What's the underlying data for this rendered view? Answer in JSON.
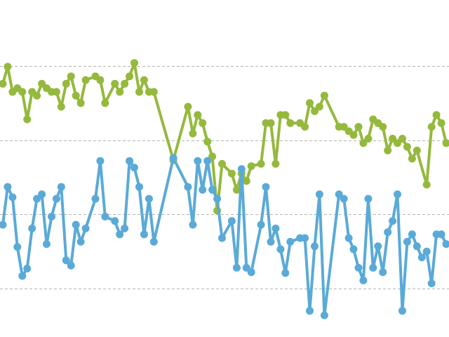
{
  "chart_data": {
    "type": "line",
    "title": "",
    "xlabel": "",
    "ylabel": "",
    "xlim": [
      0,
      91
    ],
    "ylim": [
      0,
      4.5
    ],
    "gridlines_y": [
      1,
      2,
      3,
      4
    ],
    "grid": true,
    "legend": "none",
    "series": [
      {
        "color": "#95b93d",
        "points": [
          [
            0,
            3.76
          ],
          [
            1,
            3.99
          ],
          [
            2,
            3.65
          ],
          [
            3,
            3.7
          ],
          [
            4,
            3.65
          ],
          [
            5,
            3.28
          ],
          [
            6,
            3.65
          ],
          [
            7,
            3.6
          ],
          [
            8,
            3.76
          ],
          [
            9,
            3.7
          ],
          [
            10,
            3.65
          ],
          [
            11,
            3.65
          ],
          [
            12,
            3.45
          ],
          [
            13,
            3.76
          ],
          [
            14,
            3.86
          ],
          [
            15,
            3.6
          ],
          [
            16,
            3.5
          ],
          [
            17,
            3.81
          ],
          [
            19,
            3.86
          ],
          [
            20,
            3.81
          ],
          [
            21,
            3.5
          ],
          [
            23,
            3.76
          ],
          [
            24,
            3.65
          ],
          [
            25,
            3.76
          ],
          [
            26,
            3.86
          ],
          [
            27,
            4.04
          ],
          [
            28,
            3.65
          ],
          [
            29,
            3.81
          ],
          [
            30,
            3.65
          ],
          [
            31,
            3.65
          ],
          [
            35,
            2.73
          ],
          [
            38,
            3.45
          ],
          [
            39,
            3.09
          ],
          [
            40,
            3.34
          ],
          [
            41,
            3.23
          ],
          [
            42,
            2.98
          ],
          [
            43,
            2.78
          ],
          [
            44,
            2.05
          ],
          [
            45,
            2.68
          ],
          [
            47,
            2.55
          ],
          [
            48,
            2.33
          ],
          [
            49,
            2.55
          ],
          [
            50,
            2.45
          ],
          [
            51,
            2.65
          ],
          [
            53,
            2.68
          ],
          [
            54,
            3.23
          ],
          [
            55,
            3.23
          ],
          [
            56,
            2.68
          ],
          [
            57,
            3.34
          ],
          [
            58,
            3.34
          ],
          [
            59,
            3.23
          ],
          [
            61,
            3.23
          ],
          [
            62,
            3.18
          ],
          [
            63,
            3.5
          ],
          [
            64,
            3.39
          ],
          [
            65,
            3.45
          ],
          [
            66,
            3.6
          ],
          [
            69,
            3.18
          ],
          [
            70,
            3.18
          ],
          [
            71,
            3.12
          ],
          [
            72,
            3.07
          ],
          [
            73,
            3.18
          ],
          [
            74,
            2.96
          ],
          [
            75,
            3.02
          ],
          [
            76,
            3.28
          ],
          [
            77,
            3.23
          ],
          [
            78,
            3.18
          ],
          [
            79,
            2.86
          ],
          [
            80,
            3.02
          ],
          [
            81,
            2.96
          ],
          [
            82,
            3.02
          ],
          [
            83,
            2.91
          ],
          [
            84,
            2.75
          ],
          [
            85,
            2.86
          ],
          [
            87,
            2.4
          ],
          [
            88,
            3.18
          ],
          [
            89,
            3.34
          ],
          [
            90,
            3.23
          ],
          [
            91,
            2.96
          ]
        ]
      },
      {
        "color": "#5aaad8",
        "points": [
          [
            0,
            1.86
          ],
          [
            1,
            2.37
          ],
          [
            2,
            2.23
          ],
          [
            3,
            1.56
          ],
          [
            4,
            1.17
          ],
          [
            5,
            1.27
          ],
          [
            6,
            1.81
          ],
          [
            7,
            2.21
          ],
          [
            8,
            2.27
          ],
          [
            9,
            1.6
          ],
          [
            10,
            1.97
          ],
          [
            11,
            2.21
          ],
          [
            12,
            2.37
          ],
          [
            13,
            1.38
          ],
          [
            14,
            1.31
          ],
          [
            15,
            1.86
          ],
          [
            16,
            1.63
          ],
          [
            17,
            1.81
          ],
          [
            19,
            2.21
          ],
          [
            20,
            2.72
          ],
          [
            21,
            1.97
          ],
          [
            23,
            1.91
          ],
          [
            24,
            1.73
          ],
          [
            25,
            1.81
          ],
          [
            26,
            2.72
          ],
          [
            27,
            2.63
          ],
          [
            28,
            2.37
          ],
          [
            29,
            1.73
          ],
          [
            30,
            2.21
          ],
          [
            31,
            1.63
          ],
          [
            35,
            2.76
          ],
          [
            38,
            2.37
          ],
          [
            39,
            1.86
          ],
          [
            40,
            2.72
          ],
          [
            41,
            2.33
          ],
          [
            42,
            2.72
          ],
          [
            43,
            2.33
          ],
          [
            44,
            2.21
          ],
          [
            45,
            1.68
          ],
          [
            47,
            1.91
          ],
          [
            48,
            1.28
          ],
          [
            49,
            2.61
          ],
          [
            50,
            1.28
          ],
          [
            51,
            1.22
          ],
          [
            53,
            1.86
          ],
          [
            54,
            2.37
          ],
          [
            55,
            1.63
          ],
          [
            56,
            1.81
          ],
          [
            57,
            1.53
          ],
          [
            58,
            1.21
          ],
          [
            59,
            1.63
          ],
          [
            61,
            1.68
          ],
          [
            62,
            1.68
          ],
          [
            63,
            0.7
          ],
          [
            64,
            1.57
          ],
          [
            65,
            2.27
          ],
          [
            66,
            0.64
          ],
          [
            69,
            2.27
          ],
          [
            70,
            2.21
          ],
          [
            71,
            1.68
          ],
          [
            72,
            1.53
          ],
          [
            73,
            1.28
          ],
          [
            74,
            1.11
          ],
          [
            75,
            2.21
          ],
          [
            76,
            1.28
          ],
          [
            77,
            1.57
          ],
          [
            78,
            1.22
          ],
          [
            79,
            1.76
          ],
          [
            80,
            1.91
          ],
          [
            81,
            2.27
          ],
          [
            82,
            0.7
          ],
          [
            83,
            1.63
          ],
          [
            84,
            1.73
          ],
          [
            85,
            1.57
          ],
          [
            86,
            1.42
          ],
          [
            87,
            1.5
          ],
          [
            88,
            1.07
          ],
          [
            89,
            1.73
          ],
          [
            90,
            1.73
          ],
          [
            91,
            1.6
          ]
        ]
      }
    ]
  }
}
